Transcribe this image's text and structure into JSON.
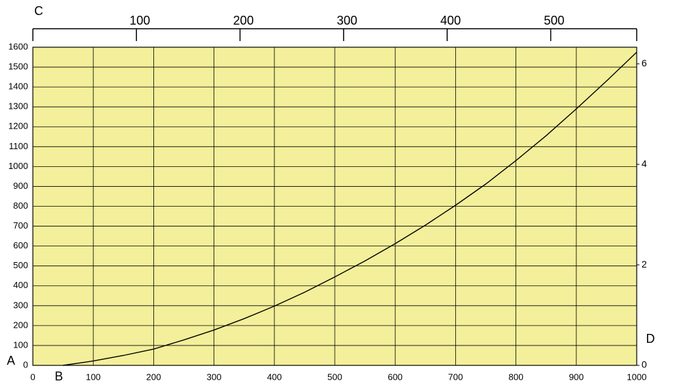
{
  "chart_data": {
    "type": "line",
    "x_label": "B",
    "y_label": "A",
    "x2_label": "C",
    "y2_label": "D",
    "xlim": [
      0,
      1000
    ],
    "xticks": [
      0,
      100,
      200,
      300,
      400,
      500,
      600,
      700,
      800,
      900,
      1000
    ],
    "ylim": [
      0,
      1600
    ],
    "yticks": [
      0,
      100,
      200,
      300,
      400,
      500,
      600,
      700,
      800,
      900,
      1000,
      1100,
      1200,
      1300,
      1400,
      1500,
      1600
    ],
    "y2lim": [
      0,
      6.33
    ],
    "y2ticks": [
      0,
      2,
      4,
      6
    ],
    "x2lim": [
      0,
      583
    ],
    "x2ticks": [
      100,
      200,
      300,
      400,
      500
    ],
    "grid": true,
    "background": "#f3ef9a",
    "series": [
      {
        "color": "#000000",
        "x": [
          50,
          100,
          150,
          200,
          250,
          300,
          350,
          400,
          450,
          500,
          550,
          600,
          650,
          700,
          750,
          800,
          850,
          900,
          950,
          1000
        ],
        "values": [
          0,
          22,
          50,
          82,
          128,
          178,
          235,
          298,
          368,
          445,
          525,
          612,
          705,
          805,
          912,
          1030,
          1155,
          1290,
          1430,
          1575
        ]
      }
    ]
  }
}
